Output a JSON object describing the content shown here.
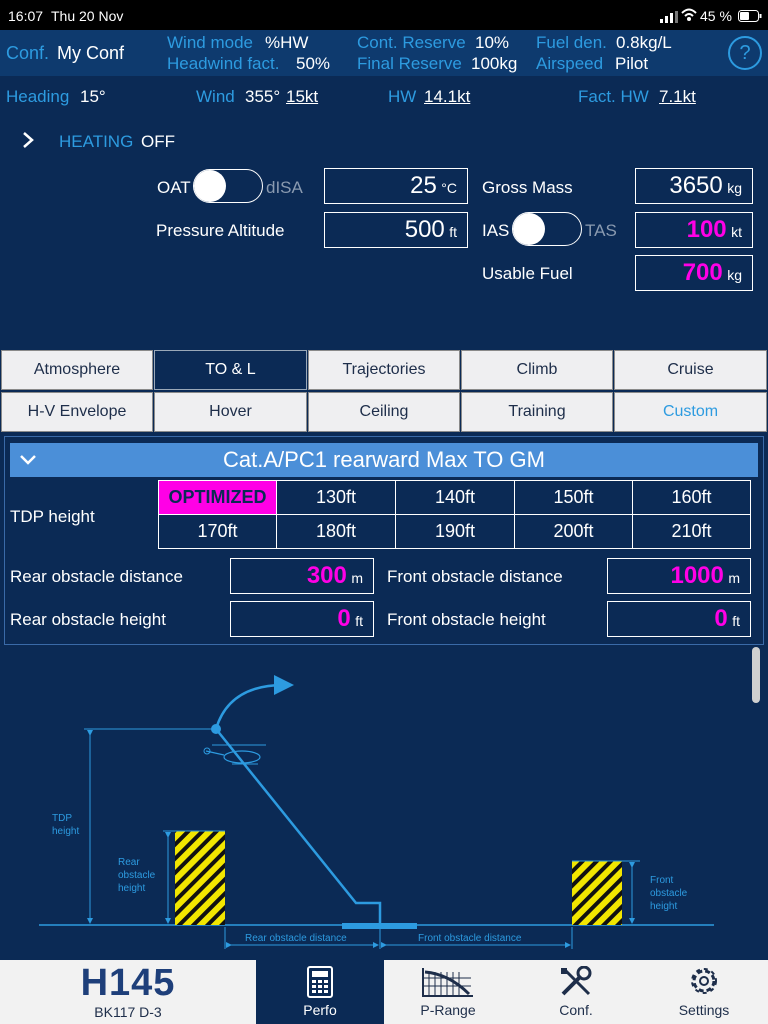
{
  "status": {
    "time": "16:07",
    "date": "Thu 20 Nov",
    "battery": "45 %"
  },
  "conf_bar": {
    "conf_label": "Conf.",
    "conf_value": "My Conf",
    "wind_mode_label": "Wind mode",
    "wind_mode_value": "%HW",
    "headwind_label": "Headwind fact.",
    "headwind_value": "50%",
    "cont_reserve_label": "Cont. Reserve",
    "cont_reserve_value": "10%",
    "final_reserve_label": "Final Reserve",
    "final_reserve_value": "100kg",
    "fuel_den_label": "Fuel den.",
    "fuel_den_value": "0.8kg/L",
    "airspeed_label": "Airspeed",
    "airspeed_value": "Pilot",
    "help": "?"
  },
  "wind_bar": {
    "heading_label": "Heading",
    "heading_value": "15°",
    "wind_label": "Wind",
    "wind_dir": "355°",
    "wind_speed": "15kt",
    "hw_label": "HW",
    "hw_value": "14.1kt",
    "fact_hw_label": "Fact. HW",
    "fact_hw_value": "7.1kt"
  },
  "inputs": {
    "heating_label": "HEATING",
    "heating_value": "OFF",
    "oat_label": "OAT",
    "disa_label": "dISA",
    "oat_value": "25",
    "oat_unit": "°C",
    "pressure_alt_label": "Pressure Altitude",
    "pressure_alt_value": "500",
    "pressure_alt_unit": "ft",
    "gross_mass_label": "Gross Mass",
    "gross_mass_value": "3650",
    "gross_mass_unit": "kg",
    "ias_label": "IAS",
    "tas_label": "TAS",
    "speed_value": "100",
    "speed_unit": "kt",
    "usable_fuel_label": "Usable Fuel",
    "usable_fuel_value": "700",
    "usable_fuel_unit": "kg"
  },
  "tabs_row1": [
    "Atmosphere",
    "TO & L",
    "Trajectories",
    "Climb",
    "Cruise"
  ],
  "tabs_row2": [
    "H-V Envelope",
    "Hover",
    "Ceiling",
    "Training",
    "Custom"
  ],
  "section": {
    "title": "Cat.A/PC1 rearward Max TO GM",
    "tdp_label": "TDP height",
    "tdp_options": [
      "OPTIMIZED",
      "130ft",
      "140ft",
      "150ft",
      "160ft",
      "170ft",
      "180ft",
      "190ft",
      "200ft",
      "210ft"
    ],
    "rear_dist_label": "Rear obstacle distance",
    "rear_dist_value": "300",
    "rear_dist_unit": "m",
    "front_dist_label": "Front obstacle distance",
    "front_dist_value": "1000",
    "front_dist_unit": "m",
    "rear_height_label": "Rear obstacle height",
    "rear_height_value": "0",
    "rear_height_unit": "ft",
    "front_height_label": "Front obstacle height",
    "front_height_value": "0",
    "front_height_unit": "ft"
  },
  "diagram": {
    "tdp_height_label_1": "TDP",
    "tdp_height_label_2": "height",
    "rear_obs_1": "Rear",
    "rear_obs_2": "obstacle",
    "rear_obs_3": "height",
    "front_obs_1": "Front",
    "front_obs_2": "obstacle",
    "front_obs_3": "height",
    "rear_dist": "Rear obstacle distance",
    "front_dist": "Front obstacle distance"
  },
  "nav": {
    "logo": "H145",
    "model": "BK117 D-3",
    "items": [
      "Perfo",
      "P-Range",
      "Conf.",
      "Settings"
    ]
  },
  "colors": {
    "background": "#0b2a55",
    "accent": "#2d9be0",
    "highlight": "#ff00e6",
    "obstacle": "#f2e600"
  }
}
